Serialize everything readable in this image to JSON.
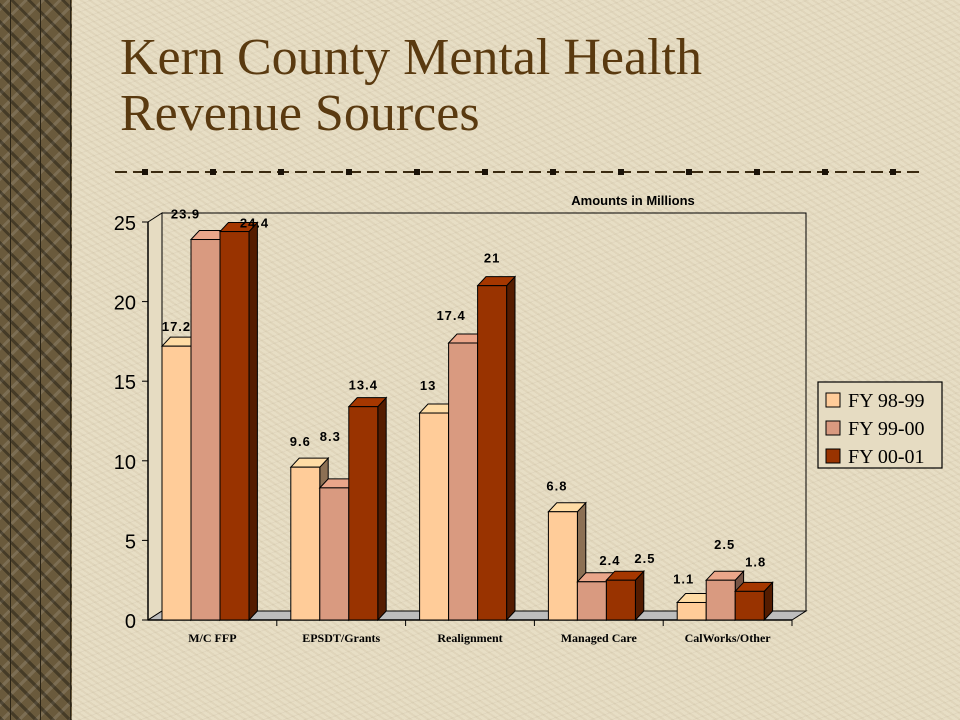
{
  "title": {
    "line1": "Kern County Mental Health",
    "line2": "Revenue Sources"
  },
  "chart_data": {
    "type": "bar",
    "title": "Amounts in Millions",
    "categories": [
      "M/C FFP",
      "EPSDT/Grants",
      "Realignment",
      "Managed Care",
      "CalWorks/Other"
    ],
    "series": [
      {
        "name": "FY 98-99",
        "values": [
          17.2,
          9.6,
          13,
          6.8,
          1.1
        ],
        "color": "#ffcc99"
      },
      {
        "name": "FY 99-00",
        "values": [
          23.9,
          8.3,
          17.4,
          2.4,
          2.5
        ],
        "color": "#d99a80"
      },
      {
        "name": "FY 00-01",
        "values": [
          24.4,
          13.4,
          21,
          2.5,
          1.8
        ],
        "color": "#993300"
      }
    ],
    "data_labels": [
      [
        "17.2",
        "9.6",
        "13",
        "6.8",
        "1.1"
      ],
      [
        "23.9",
        "8.3",
        "17.4",
        "2.4",
        "2.5"
      ],
      [
        "24.4",
        "13.4",
        "21",
        "2.5",
        "1.8"
      ]
    ],
    "yticks": [
      "0",
      "5",
      "10",
      "15",
      "20",
      "25"
    ],
    "ylim": [
      0,
      25
    ],
    "grid": false,
    "legend": "right"
  }
}
